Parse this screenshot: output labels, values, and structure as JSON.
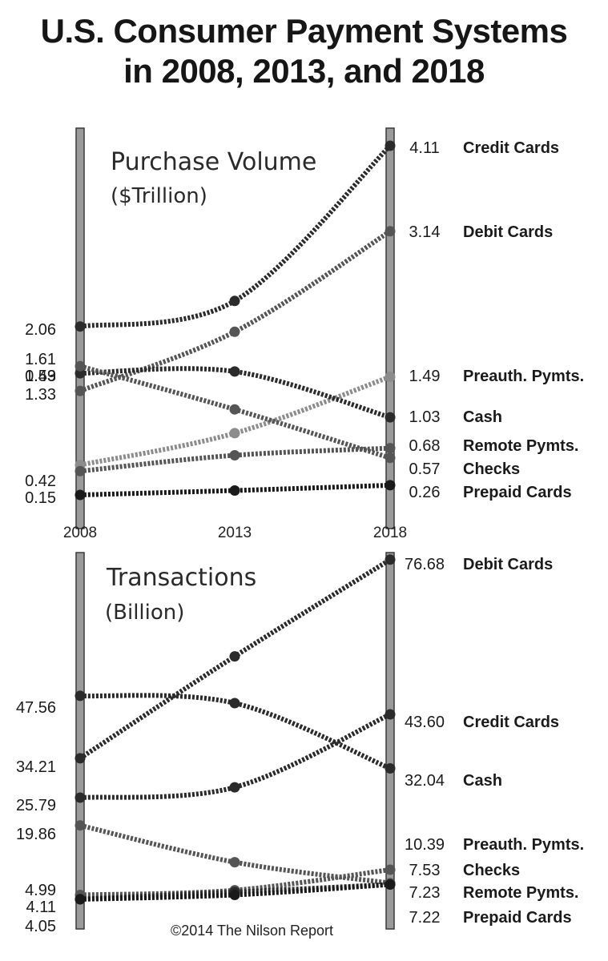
{
  "title": [
    "U.S. Consumer Payment Systems",
    "in 2008, 2013, and 2018"
  ],
  "credit": "©2014 The Nilson Report",
  "colors": {
    "dark": "#2b2b2b",
    "medium": "#555555",
    "light": "#8c8c8c",
    "rail": "#9a9a9a",
    "rail_edge": "#3a3a3a"
  },
  "chart_data": [
    {
      "type": "line",
      "title": "Purchase Volume",
      "subtitle": "($Trillion)",
      "x": [
        "2008",
        "2013",
        "2018"
      ],
      "series": [
        {
          "name": "Credit Cards",
          "values": [
            2.06,
            2.35,
            4.11
          ],
          "labels": [
            "2.06",
            null,
            "4.11"
          ],
          "color": "#2b2b2b"
        },
        {
          "name": "Debit Cards",
          "values": [
            1.33,
            2.0,
            3.14
          ],
          "labels": [
            "1.33",
            null,
            "3.14"
          ],
          "color": "#555555"
        },
        {
          "name": "Preauth. Pymts.",
          "values": [
            0.49,
            0.85,
            1.49
          ],
          "labels": [
            "0.49",
            null,
            "1.49"
          ],
          "color": "#8c8c8c"
        },
        {
          "name": "Cash",
          "values": [
            1.53,
            1.55,
            1.03
          ],
          "labels": [
            "1.53",
            null,
            "1.03"
          ],
          "color": "#2b2b2b"
        },
        {
          "name": "Remote Pymts.",
          "values": [
            0.42,
            0.6,
            0.68
          ],
          "labels": [
            "0.42",
            null,
            "0.68"
          ],
          "color": "#555555"
        },
        {
          "name": "Checks",
          "values": [
            1.61,
            1.12,
            0.57
          ],
          "labels": [
            "1.61",
            null,
            "0.57"
          ],
          "color": "#555555"
        },
        {
          "name": "Prepaid Cards",
          "values": [
            0.15,
            0.2,
            0.26
          ],
          "labels": [
            "0.15",
            null,
            "0.26"
          ],
          "color": "#1a1a1a"
        }
      ]
    },
    {
      "type": "line",
      "title": "Transactions",
      "subtitle": "(Billion)",
      "x": [
        "2008",
        "2013",
        "2018"
      ],
      "series": [
        {
          "name": "Debit Cards",
          "values": [
            34.21,
            56.0,
            76.68
          ],
          "labels": [
            "34.21",
            null,
            "76.68"
          ],
          "color": "#2b2b2b"
        },
        {
          "name": "Credit Cards",
          "values": [
            25.79,
            28.0,
            43.6
          ],
          "labels": [
            "25.79",
            null,
            "43.60"
          ],
          "color": "#2b2b2b"
        },
        {
          "name": "Cash",
          "values": [
            47.56,
            46.0,
            32.04
          ],
          "labels": [
            "47.56",
            null,
            "32.04"
          ],
          "color": "#2b2b2b"
        },
        {
          "name": "Preauth. Pymts.",
          "values": [
            4.99,
            6.0,
            10.39
          ],
          "labels": [
            "4.99",
            null,
            "10.39"
          ],
          "color": "#555555"
        },
        {
          "name": "Checks",
          "values": [
            19.86,
            12.0,
            7.53
          ],
          "labels": [
            "19.86",
            null,
            "7.53"
          ],
          "color": "#555555"
        },
        {
          "name": "Remote Pymts.",
          "values": [
            4.11,
            5.6,
            7.23
          ],
          "labels": [
            "4.11",
            null,
            "7.23"
          ],
          "color": "#2b2b2b"
        },
        {
          "name": "Prepaid Cards",
          "values": [
            4.05,
            5.0,
            7.22
          ],
          "labels": [
            "4.05",
            null,
            "7.22"
          ],
          "color": "#1a1a1a"
        }
      ]
    }
  ]
}
